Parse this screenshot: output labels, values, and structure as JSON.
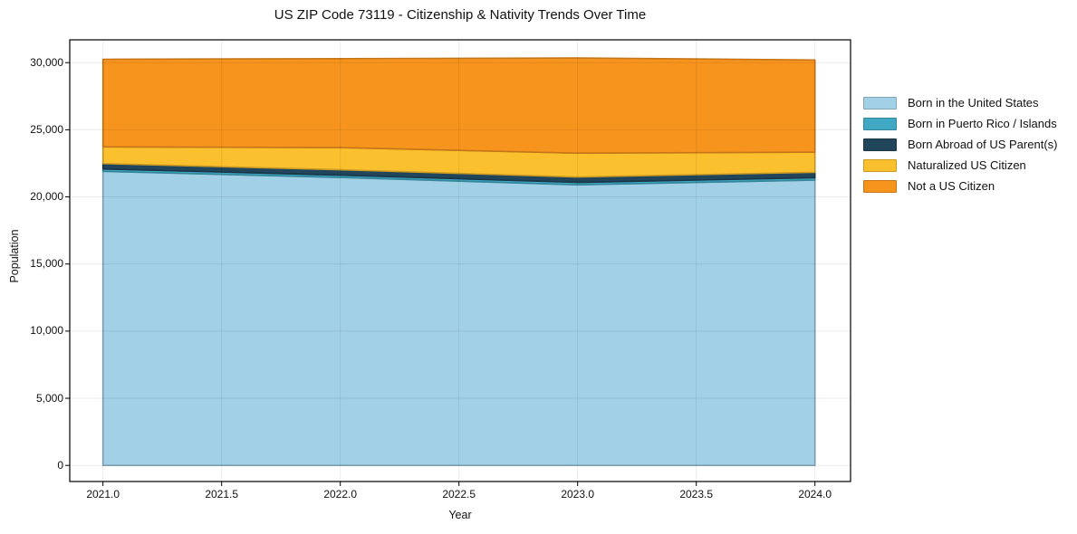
{
  "title": "US ZIP Code 73119 - Citizenship & Nativity Trends Over Time",
  "chart_data": {
    "type": "area",
    "stacked": true,
    "title": "US ZIP Code 73119 - Citizenship & Nativity Trends Over Time",
    "xlabel": "Year",
    "ylabel": "Population",
    "x": [
      2021,
      2022,
      2023,
      2024
    ],
    "series": [
      {
        "name": "Born in the United States",
        "color": "#A2D1E7",
        "values": [
          21900,
          21450,
          20900,
          21250
        ]
      },
      {
        "name": "Born in Puerto Rico / Islands",
        "color": "#40A8C3",
        "values": [
          180,
          170,
          180,
          180
        ]
      },
      {
        "name": "Born Abroad of US Parent(s)",
        "color": "#21455B",
        "values": [
          400,
          400,
          400,
          400
        ]
      },
      {
        "name": "Naturalized US Citizen",
        "color": "#FBC02D",
        "values": [
          1250,
          1650,
          1780,
          1500
        ]
      },
      {
        "name": "Not a US Citizen",
        "color": "#F7941E",
        "values": [
          6520,
          6630,
          7090,
          6870
        ]
      }
    ],
    "xticks": [
      2021.0,
      2021.5,
      2022.0,
      2022.5,
      2023.0,
      2023.5,
      2024.0
    ],
    "yticks": [
      0,
      5000,
      10000,
      15000,
      20000,
      25000,
      30000
    ],
    "xlim": [
      2020.86,
      2024.15
    ],
    "ylim": [
      -1200,
      31700
    ],
    "grid": true,
    "legend_position": "right-outside",
    "x_tick_format": "one-decimal",
    "y_tick_format": "thousands-comma"
  }
}
